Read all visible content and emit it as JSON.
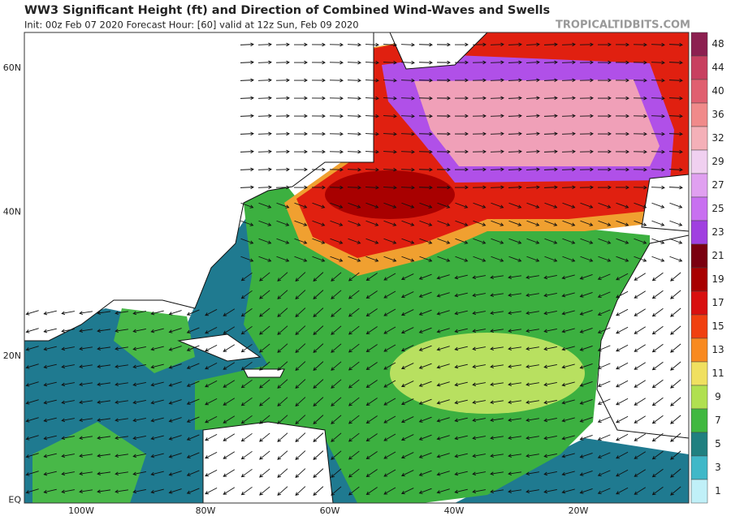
{
  "header": {
    "title": "WW3 Significant Height (ft) and Direction of Combined Wind-Waves and Swells",
    "subtitle": "Init: 00z Feb 07 2020   Forecast Hour: [60]   valid at 12z Sun, Feb 09 2020",
    "watermark": "TROPICALTIDBITS.COM"
  },
  "map": {
    "lat_labels": [
      "60N",
      "40N",
      "20N",
      "EQ"
    ],
    "lon_labels": [
      "100W",
      "80W",
      "60W",
      "40W",
      "20W"
    ]
  },
  "colorbar": {
    "labels": [
      48,
      44,
      40,
      36,
      32,
      29,
      27,
      25,
      23,
      21,
      19,
      17,
      15,
      13,
      11,
      9,
      7,
      5,
      3,
      1
    ],
    "colors": [
      "#8c2050",
      "#c84060",
      "#e06070",
      "#f08a8a",
      "#f4b0b8",
      "#f0d0f0",
      "#e0a0f0",
      "#c870f0",
      "#a040e0",
      "#7a0010",
      "#a80000",
      "#d81010",
      "#f04010",
      "#f88a20",
      "#f0e060",
      "#b0e050",
      "#40b840",
      "#208080",
      "#40b8c8",
      "#c0f0f8"
    ]
  }
}
